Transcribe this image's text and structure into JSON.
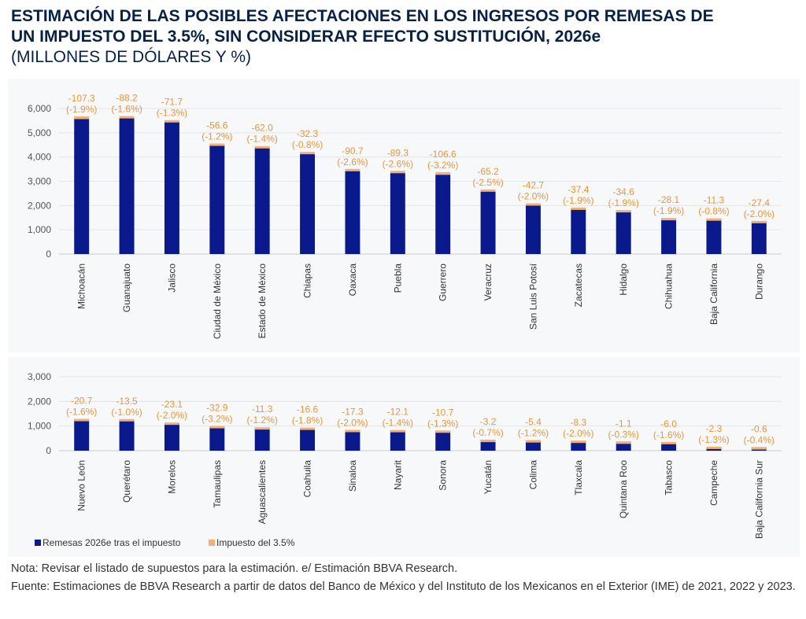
{
  "title": {
    "line1": "ESTIMACIÓN DE LAS POSIBLES AFECTACIONES EN LOS INGRESOS POR REMESAS DE",
    "line2": "UN IMPUESTO DEL 3.5%, SIN CONSIDERAR EFECTO SUSTITUCIÓN, 2026e",
    "subtitle": "(MILLONES DE DÓLARES Y %)"
  },
  "colors": {
    "after_tax": "#0a1a8c",
    "tax": "#f5b070",
    "label": "#e8953a",
    "title": "#072146"
  },
  "legend": {
    "position": "bottom-left",
    "items": [
      "Remesas 2026e tras el impuesto",
      "Impuesto del 3.5%"
    ]
  },
  "chart_data": [
    {
      "type": "bar",
      "stacked": true,
      "ylim": [
        0,
        6000
      ],
      "yticks": [
        "0",
        "1,000",
        "2,000",
        "3,000",
        "4,000",
        "5,000",
        "6,000"
      ],
      "grid": true,
      "categories": [
        "Michoacán",
        "Guanajuato",
        "Jalisco",
        "Ciudad de México",
        "Estado de México",
        "Chiapas",
        "Oaxaca",
        "Puebla",
        "Guerrero",
        "Veracruz",
        "San Luis Potosí",
        "Zacatecas",
        "Hidalgo",
        "Chihuahua",
        "Baja California",
        "Durango"
      ],
      "series": [
        {
          "name": "Remesas 2026e tras el impuesto",
          "values": [
            5570,
            5600,
            5450,
            4500,
            4390,
            4180,
            3420,
            3340,
            3270,
            2600,
            2050,
            1880,
            1780,
            1460,
            1460,
            1340
          ]
        },
        {
          "name": "Impuesto del 3.5%",
          "values": [
            107.3,
            88.2,
            71.7,
            56.6,
            62.0,
            32.3,
            90.7,
            89.3,
            106.6,
            65.2,
            42.7,
            37.4,
            34.6,
            28.1,
            11.3,
            27.4
          ]
        }
      ],
      "labels": [
        [
          "-107.3",
          "(-1.9%)"
        ],
        [
          "-88.2",
          "(-1.6%)"
        ],
        [
          "-71.7",
          "(-1.3%)"
        ],
        [
          "-56.6",
          "(-1.2%)"
        ],
        [
          "-62.0",
          "(-1.4%)"
        ],
        [
          "-32.3",
          "(-0.8%)"
        ],
        [
          "-90.7",
          "(-2.6%)"
        ],
        [
          "-89.3",
          "(-2.6%)"
        ],
        [
          "-106.6",
          "(-3.2%)"
        ],
        [
          "-65.2",
          "(-2.5%)"
        ],
        [
          "-42.7",
          "(-2.0%)"
        ],
        [
          "-37.4",
          "(-1.9%)"
        ],
        [
          "-34.6",
          "(-1.9%)"
        ],
        [
          "-28.1",
          "(-1.9%)"
        ],
        [
          "-11.3",
          "(-0.8%)"
        ],
        [
          "-27.4",
          "(-2.0%)"
        ]
      ]
    },
    {
      "type": "bar",
      "stacked": true,
      "ylim": [
        0,
        3000
      ],
      "yticks": [
        "0",
        "1,000",
        "2,000",
        "3,000"
      ],
      "grid": true,
      "categories": [
        "Nuevo León",
        "Querétaro",
        "Morelos",
        "Tamaulipas",
        "Aguascalientes",
        "Coahuila",
        "Sinaloa",
        "Nayarit",
        "Sonora",
        "Yucatán",
        "Colima",
        "Tlaxcala",
        "Quintana Roo",
        "Tabasco",
        "Campeche",
        "Baja California Sur"
      ],
      "series": [
        {
          "name": "Remesas 2026e tras el impuesto",
          "values": [
            1270,
            1270,
            1120,
            970,
            940,
            920,
            830,
            830,
            810,
            440,
            420,
            400,
            370,
            350,
            160,
            140
          ]
        },
        {
          "name": "Impuesto del 3.5%",
          "values": [
            20.7,
            13.5,
            23.1,
            32.9,
            11.3,
            16.6,
            17.3,
            12.1,
            10.7,
            3.2,
            5.4,
            8.3,
            1.1,
            6.0,
            2.3,
            0.6
          ]
        }
      ],
      "labels": [
        [
          "-20.7",
          "(-1.6%)"
        ],
        [
          "-13.5",
          "(-1.0%)"
        ],
        [
          "-23.1",
          "(-2.0%)"
        ],
        [
          "-32.9",
          "(-3.2%)"
        ],
        [
          "-11.3",
          "(-1.2%)"
        ],
        [
          "-16.6",
          "(-1.8%)"
        ],
        [
          "-17.3",
          "(-2.0%)"
        ],
        [
          "-12.1",
          "(-1.4%)"
        ],
        [
          "-10.7",
          "(-1.3%)"
        ],
        [
          "-3.2",
          "(-0.7%)"
        ],
        [
          "-5.4",
          "(-1.2%)"
        ],
        [
          "-8.3",
          "(-2.0%)"
        ],
        [
          "-1.1",
          "(-0.3%)"
        ],
        [
          "-6.0",
          "(-1.6%)"
        ],
        [
          "-2.3",
          "(-1.3%)"
        ],
        [
          "-0.6",
          "(-0.4%)"
        ]
      ]
    }
  ],
  "notes": {
    "nota": "Nota: Revisar el listado de supuestos para la estimación. e/ Estimación BBVA Research.",
    "fuente": "Fuente: Estimaciones de BBVA Research a partir de datos del Banco de México y del Instituto de los Mexicanos en el Exterior (IME) de 2021, 2022 y 2023."
  }
}
